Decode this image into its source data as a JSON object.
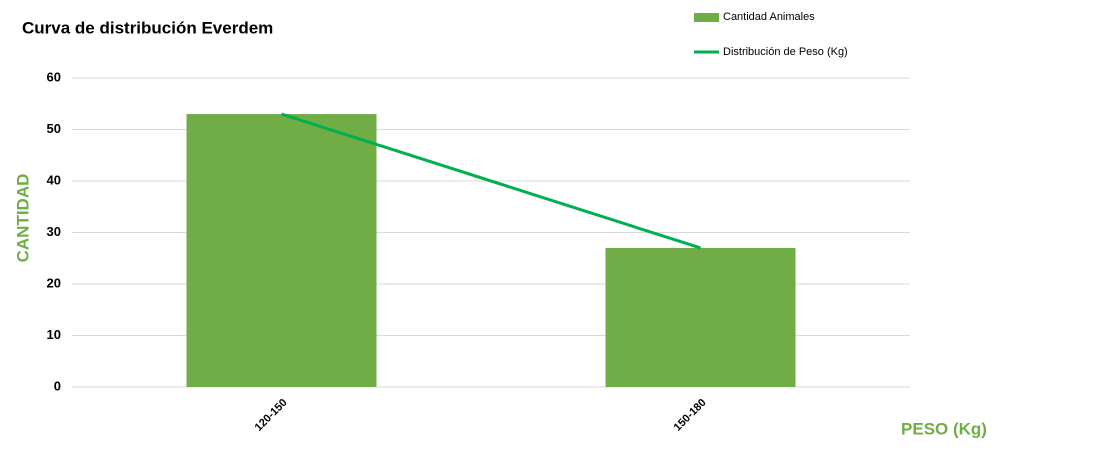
{
  "chart_data": {
    "type": "bar",
    "title": "Curva de distribución Everdem",
    "x_label": "PESO (Kg)",
    "y_label": "CANTIDAD",
    "categories": [
      "120-150",
      "150-180"
    ],
    "series": [
      {
        "name": "Cantidad Animales",
        "type": "bar",
        "color": "#70ad47",
        "values": [
          53,
          27
        ]
      },
      {
        "name": "Distribución de Peso (Kg)",
        "type": "line",
        "color": "#00b050",
        "values": [
          53,
          27
        ]
      }
    ],
    "ylim": [
      0,
      60
    ],
    "yticks": [
      0,
      10,
      20,
      30,
      40,
      50,
      60
    ],
    "grid": true,
    "legend": "top-right"
  }
}
